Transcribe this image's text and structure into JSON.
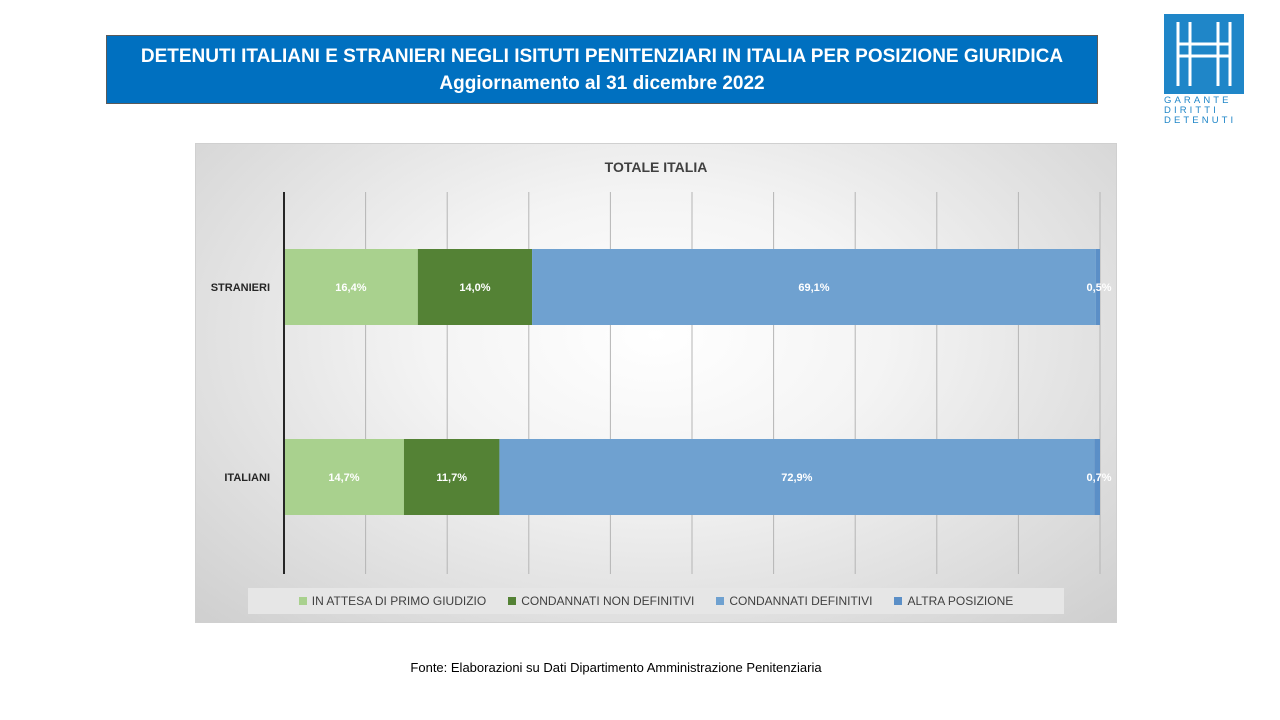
{
  "header": {
    "title_line1": "DETENUTI ITALIANI E STRANIERI NEGLI ISITUTI PENITENZIARI IN ITALIA PER POSIZIONE GIURIDICA",
    "title_line2": "Aggiornamento al 31 dicembre 2022"
  },
  "logo": {
    "line1": "GARANTE",
    "line2": "DIRITTI",
    "line3": "DETENUTI"
  },
  "footer": {
    "source": "Fonte: Elaborazioni su Dati Dipartimento Amministrazione Penitenziaria"
  },
  "chart_data": {
    "type": "bar",
    "orientation": "horizontal",
    "stacked": "100%",
    "title": "TOTALE ITALIA",
    "categories": [
      "STRANIERI",
      "ITALIANI"
    ],
    "series": [
      {
        "name": "IN ATTESA DI PRIMO GIUDIZIO",
        "color": "#a9d18e",
        "values": [
          16.4,
          14.7
        ],
        "labels": [
          "16,4%",
          "14,7%"
        ]
      },
      {
        "name": "CONDANNATI NON DEFINITIVI",
        "color": "#548235",
        "values": [
          14.0,
          11.7
        ],
        "labels": [
          "14,0%",
          "11,7%"
        ]
      },
      {
        "name": "CONDANNATI DEFINITIVI",
        "color": "#6fa1d0",
        "values": [
          69.1,
          72.9
        ],
        "labels": [
          "69,1%",
          "72,9%"
        ]
      },
      {
        "name": "ALTRA POSIZIONE",
        "color": "#5b8fc7",
        "values": [
          0.5,
          0.7
        ],
        "labels": [
          "0,5%",
          "0,7%"
        ]
      }
    ],
    "xlim": [
      0,
      100
    ],
    "grid": true,
    "legend": "bottom"
  }
}
